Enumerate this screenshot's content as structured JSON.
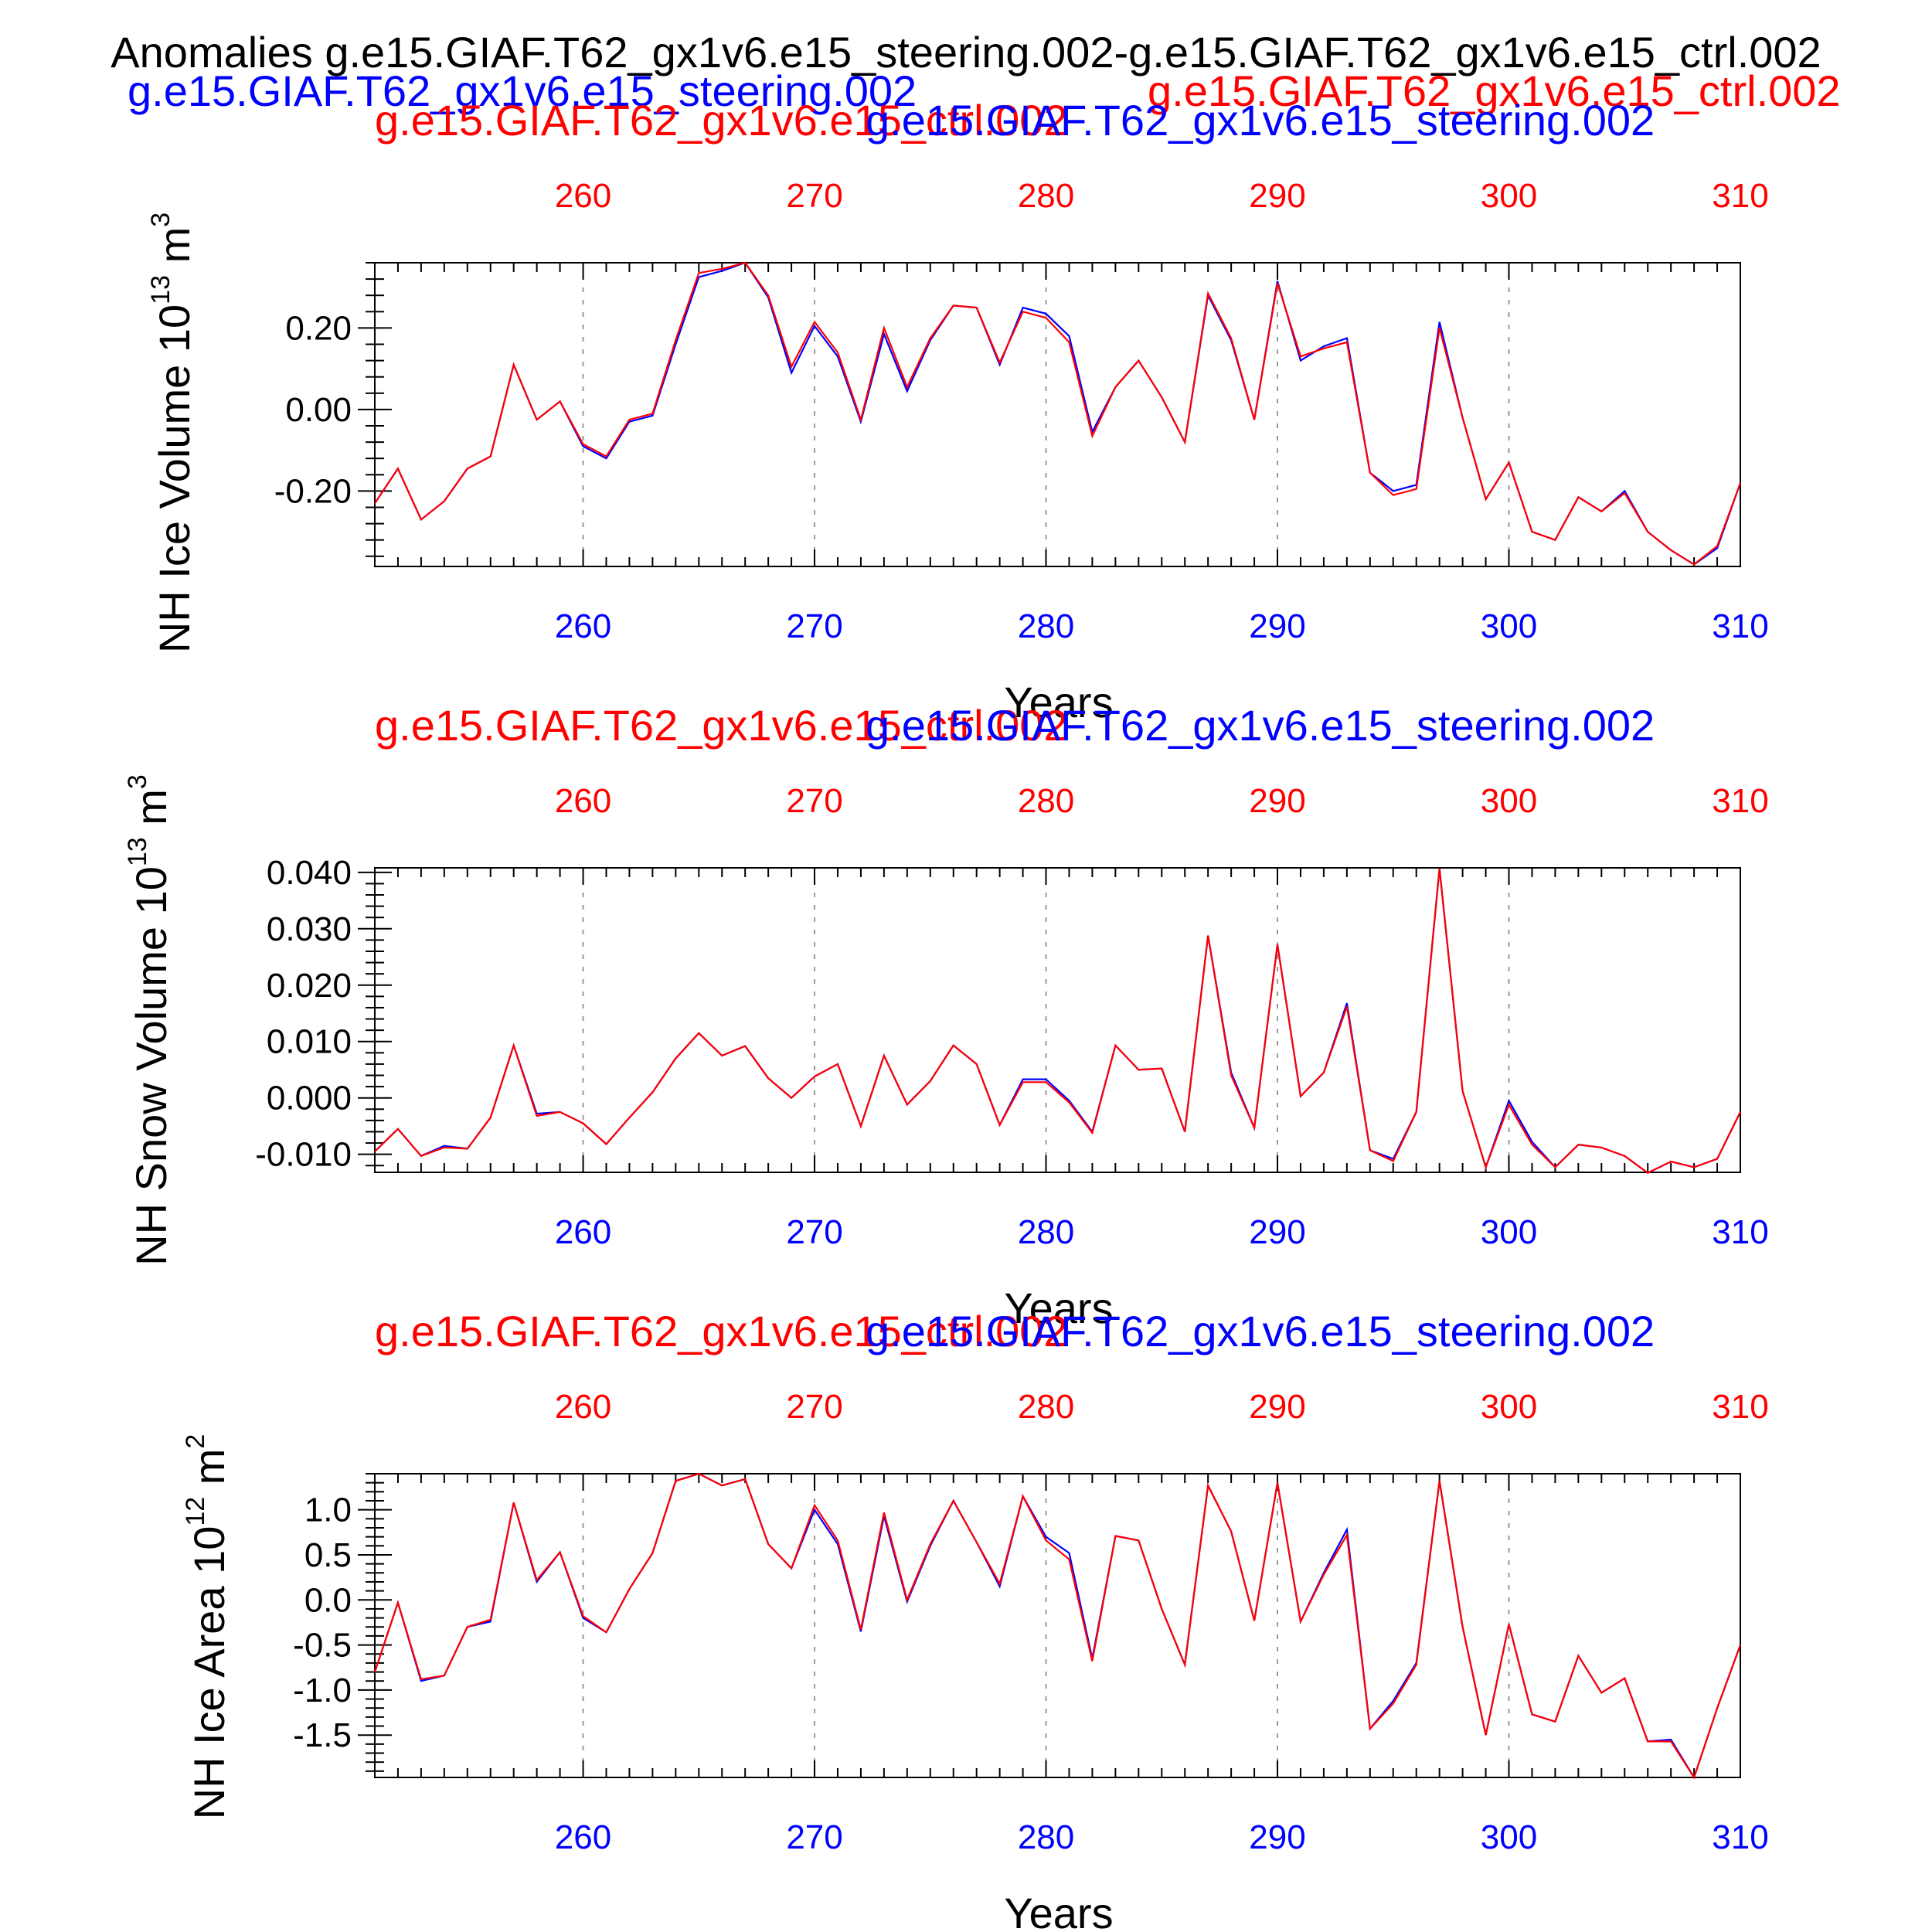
{
  "header": {
    "main_title": "Anomalies g.e15.GIAF.T62_gx1v6.e15_steering.002-g.e15.GIAF.T62_gx1v6.e15_ctrl.002",
    "case_a": "g.e15.GIAF.T62_gx1v6.e15_steering.002",
    "case_b": "g.e15.GIAF.T62_gx1v6.e15_ctrl.002"
  },
  "colors": {
    "case_a": "#0000ff",
    "case_b": "#ff0000",
    "axis": "#000000",
    "grid": "#999999"
  },
  "chart_data": [
    {
      "type": "line",
      "ylabel_text": "NH Ice Volume 10",
      "ylabel_exp": "13",
      "ylabel_unit": "m",
      "ylabel_unit_exp": "3",
      "xlabel": "Years",
      "top_title_red": "g.e15.GIAF.T62_gx1v6.e15_ctrl.002",
      "top_title_blue": "g.e15.GIAF.T62_gx1v6.e15_steering.002",
      "xlim": [
        251,
        310
      ],
      "ylim": [
        -0.385,
        0.36
      ],
      "xticks": [
        "260",
        "270",
        "280",
        "290",
        "300",
        "310"
      ],
      "yticks": [
        {
          "v": 0.2,
          "label": "0.20"
        },
        {
          "v": 0.0,
          "label": "0.00"
        },
        {
          "v": -0.2,
          "label": "-0.20"
        }
      ],
      "grid": "vertical dashed",
      "x": [
        251,
        252,
        253,
        254,
        255,
        256,
        257,
        258,
        259,
        260,
        261,
        262,
        263,
        264,
        265,
        266,
        267,
        268,
        269,
        270,
        271,
        272,
        273,
        274,
        275,
        276,
        277,
        278,
        279,
        280,
        281,
        282,
        283,
        284,
        285,
        286,
        287,
        288,
        289,
        290,
        291,
        292,
        293,
        294,
        295,
        296,
        297,
        298,
        299,
        300,
        301,
        302,
        303,
        304,
        305,
        306,
        307,
        308,
        309,
        310
      ],
      "series": [
        {
          "name": "g.e15.GIAF.T62_gx1v6.e15_steering.002",
          "color": "#0000ff",
          "values": [
            -0.23,
            -0.145,
            -0.27,
            -0.225,
            -0.145,
            -0.115,
            0.11,
            -0.025,
            0.02,
            -0.09,
            -0.12,
            -0.03,
            -0.015,
            0.16,
            0.325,
            0.34,
            0.36,
            0.275,
            0.09,
            0.205,
            0.13,
            -0.03,
            0.185,
            0.045,
            0.17,
            0.255,
            0.25,
            0.11,
            0.25,
            0.235,
            0.18,
            -0.055,
            0.055,
            0.12,
            0.03,
            -0.08,
            0.28,
            0.17,
            -0.025,
            0.315,
            0.12,
            0.155,
            0.175,
            -0.155,
            -0.2,
            -0.185,
            0.215,
            -0.02,
            -0.22,
            -0.13,
            -0.3,
            -0.32,
            -0.215,
            -0.25,
            -0.2,
            -0.3,
            -0.345,
            -0.38,
            -0.34,
            -0.18
          ]
        },
        {
          "name": "g.e15.GIAF.T62_gx1v6.e15_ctrl.002",
          "color": "#ff0000",
          "values": [
            -0.23,
            -0.145,
            -0.27,
            -0.225,
            -0.145,
            -0.115,
            0.11,
            -0.025,
            0.02,
            -0.085,
            -0.115,
            -0.025,
            -0.01,
            0.17,
            0.335,
            0.345,
            0.36,
            0.28,
            0.105,
            0.215,
            0.14,
            -0.025,
            0.2,
            0.055,
            0.175,
            0.255,
            0.25,
            0.115,
            0.24,
            0.225,
            0.165,
            -0.065,
            0.055,
            0.12,
            0.03,
            -0.08,
            0.285,
            0.175,
            -0.025,
            0.31,
            0.13,
            0.15,
            0.165,
            -0.155,
            -0.21,
            -0.195,
            0.2,
            -0.02,
            -0.22,
            -0.13,
            -0.3,
            -0.32,
            -0.215,
            -0.25,
            -0.205,
            -0.3,
            -0.345,
            -0.38,
            -0.335,
            -0.18
          ]
        }
      ]
    },
    {
      "type": "line",
      "ylabel_text": "NH Snow Volume 10",
      "ylabel_exp": "13",
      "ylabel_unit": "m",
      "ylabel_unit_exp": "3",
      "xlabel": "Years",
      "top_title_red": "g.e15.GIAF.T62_gx1v6.e15_ctrl.002",
      "top_title_blue": "g.e15.GIAF.T62_gx1v6.e15_steering.002",
      "xlim": [
        251,
        310
      ],
      "ylim": [
        -0.0132,
        0.0408
      ],
      "xticks": [
        "260",
        "270",
        "280",
        "290",
        "300",
        "310"
      ],
      "yticks": [
        {
          "v": 0.04,
          "label": "0.040"
        },
        {
          "v": 0.03,
          "label": "0.030"
        },
        {
          "v": 0.02,
          "label": "0.020"
        },
        {
          "v": 0.01,
          "label": "0.010"
        },
        {
          "v": 0.0,
          "label": "0.000"
        },
        {
          "v": -0.01,
          "label": "-0.010"
        }
      ],
      "grid": "vertical dashed",
      "x": [
        251,
        252,
        253,
        254,
        255,
        256,
        257,
        258,
        259,
        260,
        261,
        262,
        263,
        264,
        265,
        266,
        267,
        268,
        269,
        270,
        271,
        272,
        273,
        274,
        275,
        276,
        277,
        278,
        279,
        280,
        281,
        282,
        283,
        284,
        285,
        286,
        287,
        288,
        289,
        290,
        291,
        292,
        293,
        294,
        295,
        296,
        297,
        298,
        299,
        300,
        301,
        302,
        303,
        304,
        305,
        306,
        307,
        308,
        309,
        310
      ],
      "series": [
        {
          "name": "g.e15.GIAF.T62_gx1v6.e15_steering.002",
          "color": "#0000ff",
          "values": [
            -0.0095,
            -0.0055,
            -0.0103,
            -0.0085,
            -0.009,
            -0.0035,
            0.0093,
            -0.0028,
            -0.0025,
            -0.0045,
            -0.0082,
            -0.0035,
            0.001,
            0.007,
            0.0115,
            0.0075,
            0.0092,
            0.0035,
            0.0,
            0.0038,
            0.006,
            -0.005,
            0.0075,
            -0.0012,
            0.003,
            0.0093,
            0.006,
            -0.0048,
            0.0033,
            0.0033,
            -0.0005,
            -0.006,
            0.0093,
            0.005,
            0.0052,
            -0.006,
            0.0288,
            0.0045,
            -0.0053,
            0.0272,
            0.0003,
            0.0045,
            0.0168,
            -0.0093,
            -0.0108,
            -0.0025,
            0.0407,
            0.0012,
            -0.0123,
            -0.0005,
            -0.0078,
            -0.0123,
            -0.0083,
            -0.0088,
            -0.0103,
            -0.0133,
            -0.0113,
            -0.0123,
            -0.0108,
            -0.0025
          ]
        },
        {
          "name": "g.e15.GIAF.T62_gx1v6.e15_ctrl.002",
          "color": "#ff0000",
          "values": [
            -0.0095,
            -0.0055,
            -0.0103,
            -0.0088,
            -0.009,
            -0.0035,
            0.0093,
            -0.0032,
            -0.0025,
            -0.0045,
            -0.0082,
            -0.0035,
            0.001,
            0.007,
            0.0115,
            0.0075,
            0.0092,
            0.0035,
            0.0,
            0.0038,
            0.006,
            -0.005,
            0.0075,
            -0.0012,
            0.003,
            0.0093,
            0.006,
            -0.0048,
            0.0028,
            0.0028,
            -0.0008,
            -0.0062,
            0.0093,
            0.005,
            0.0052,
            -0.006,
            0.0288,
            0.004,
            -0.0053,
            0.0272,
            0.0003,
            0.0045,
            0.0162,
            -0.0093,
            -0.0112,
            -0.0025,
            0.0407,
            0.0012,
            -0.0123,
            -0.0012,
            -0.0083,
            -0.0123,
            -0.0083,
            -0.0088,
            -0.0103,
            -0.0133,
            -0.0113,
            -0.0123,
            -0.0108,
            -0.0025
          ]
        }
      ]
    },
    {
      "type": "line",
      "ylabel_text": "NH Ice Area 10",
      "ylabel_exp": "12",
      "ylabel_unit": "m",
      "ylabel_unit_exp": "2",
      "xlabel": "Years",
      "top_title_red": "g.e15.GIAF.T62_gx1v6.e15_ctrl.002",
      "top_title_blue": "g.e15.GIAF.T62_gx1v6.e15_steering.002",
      "xlim": [
        251,
        310
      ],
      "ylim": [
        -1.97,
        1.4
      ],
      "xticks": [
        "260",
        "270",
        "280",
        "290",
        "300",
        "310"
      ],
      "yticks": [
        {
          "v": 1.0,
          "label": "1.0"
        },
        {
          "v": 0.5,
          "label": "0.5"
        },
        {
          "v": 0.0,
          "label": "0.0"
        },
        {
          "v": -0.5,
          "label": "-0.5"
        },
        {
          "v": -1.0,
          "label": "-1.0"
        },
        {
          "v": -1.5,
          "label": "-1.5"
        }
      ],
      "grid": "vertical dashed",
      "x": [
        251,
        252,
        253,
        254,
        255,
        256,
        257,
        258,
        259,
        260,
        261,
        262,
        263,
        264,
        265,
        266,
        267,
        268,
        269,
        270,
        271,
        272,
        273,
        274,
        275,
        276,
        277,
        278,
        279,
        280,
        281,
        282,
        283,
        284,
        285,
        286,
        287,
        288,
        289,
        290,
        291,
        292,
        293,
        294,
        295,
        296,
        297,
        298,
        299,
        300,
        301,
        302,
        303,
        304,
        305,
        306,
        307,
        308,
        309,
        310
      ],
      "series": [
        {
          "name": "g.e15.GIAF.T62_gx1v6.e15_steering.002",
          "color": "#0000ff",
          "values": [
            -0.8,
            -0.03,
            -0.9,
            -0.84,
            -0.3,
            -0.24,
            1.08,
            0.2,
            0.53,
            -0.2,
            -0.36,
            0.12,
            0.52,
            1.32,
            1.4,
            1.27,
            1.34,
            0.62,
            0.35,
            1.0,
            0.62,
            -0.35,
            0.93,
            -0.02,
            0.6,
            1.1,
            0.64,
            0.15,
            1.15,
            0.7,
            0.52,
            -0.65,
            0.71,
            0.66,
            -0.1,
            -0.72,
            1.27,
            0.76,
            -0.23,
            1.3,
            -0.24,
            0.3,
            0.78,
            -1.43,
            -1.12,
            -0.7,
            1.32,
            -0.3,
            -1.5,
            -0.27,
            -1.27,
            -1.35,
            -0.62,
            -1.03,
            -0.87,
            -1.57,
            -1.55,
            -1.97,
            -1.2,
            -0.5
          ]
        },
        {
          "name": "g.e15.GIAF.T62_gx1v6.e15_ctrl.002",
          "color": "#ff0000",
          "values": [
            -0.8,
            -0.03,
            -0.88,
            -0.84,
            -0.3,
            -0.22,
            1.08,
            0.22,
            0.53,
            -0.18,
            -0.36,
            0.12,
            0.52,
            1.32,
            1.4,
            1.27,
            1.34,
            0.62,
            0.35,
            1.05,
            0.66,
            -0.33,
            0.97,
            0.0,
            0.62,
            1.1,
            0.64,
            0.18,
            1.15,
            0.66,
            0.45,
            -0.68,
            0.71,
            0.66,
            -0.1,
            -0.72,
            1.27,
            0.76,
            -0.23,
            1.3,
            -0.24,
            0.28,
            0.72,
            -1.43,
            -1.15,
            -0.72,
            1.32,
            -0.3,
            -1.5,
            -0.27,
            -1.27,
            -1.35,
            -0.62,
            -1.03,
            -0.87,
            -1.57,
            -1.57,
            -1.97,
            -1.2,
            -0.5
          ]
        }
      ]
    }
  ]
}
